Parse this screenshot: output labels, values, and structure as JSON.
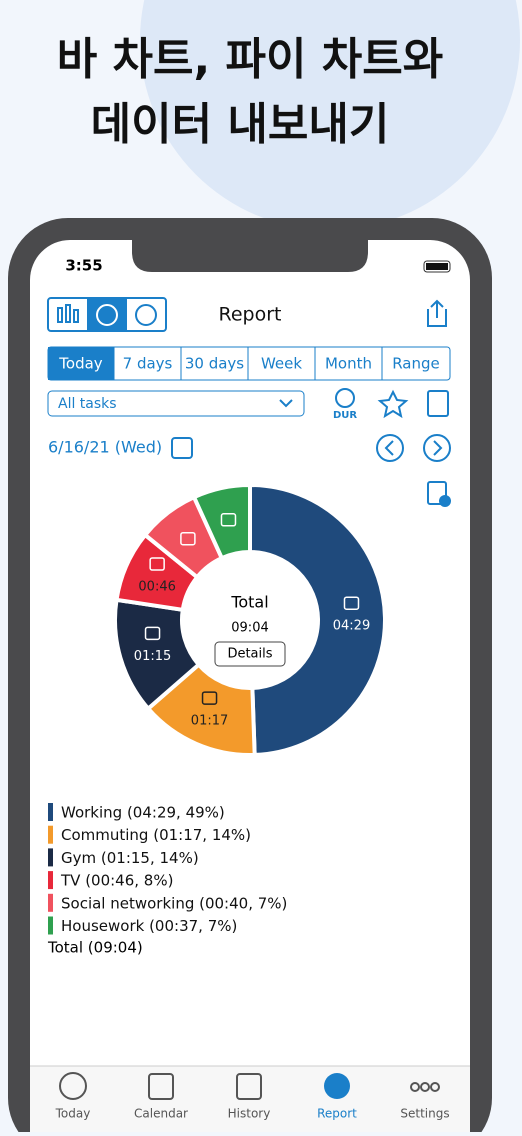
{
  "promo": {
    "line1": "바 차트, 파이 차트와",
    "line2": "데이터 내보내기"
  },
  "status_bar": {
    "time": "3:55"
  },
  "toolbar": {
    "title": "Report"
  },
  "tabs": [
    "Today",
    "7 days",
    "30 days",
    "Week",
    "Month",
    "Range"
  ],
  "filter": {
    "dropdown": "All tasks",
    "dur": "DUR"
  },
  "date": "6/16/21 (Wed)",
  "chart_data": {
    "type": "pie",
    "donut": true,
    "categories": [
      "Working",
      "Commuting",
      "Gym",
      "TV",
      "Social networking",
      "Housework"
    ],
    "values": [
      269,
      77,
      75,
      46,
      40,
      37
    ],
    "value_labels": [
      "04:29",
      "01:17",
      "01:15",
      "00:46",
      null,
      null
    ],
    "colors": [
      "#1f4a7c",
      "#f39a2b",
      "#1b2a45",
      "#e8283a",
      "#f0525e",
      "#2fa04f"
    ],
    "center_title": "Total",
    "center_value": "09:04",
    "center_button": "Details"
  },
  "legend": [
    "Working (04:29, 49%)",
    "Commuting (01:17, 14%)",
    "Gym (01:15, 14%)",
    "TV (00:46, 8%)",
    "Social networking (00:40, 7%)",
    "Housework (00:37, 7%)"
  ],
  "legend_total": "Total (09:04)",
  "tab_bar": [
    "Today",
    "Calendar",
    "History",
    "Report",
    "Settings"
  ]
}
